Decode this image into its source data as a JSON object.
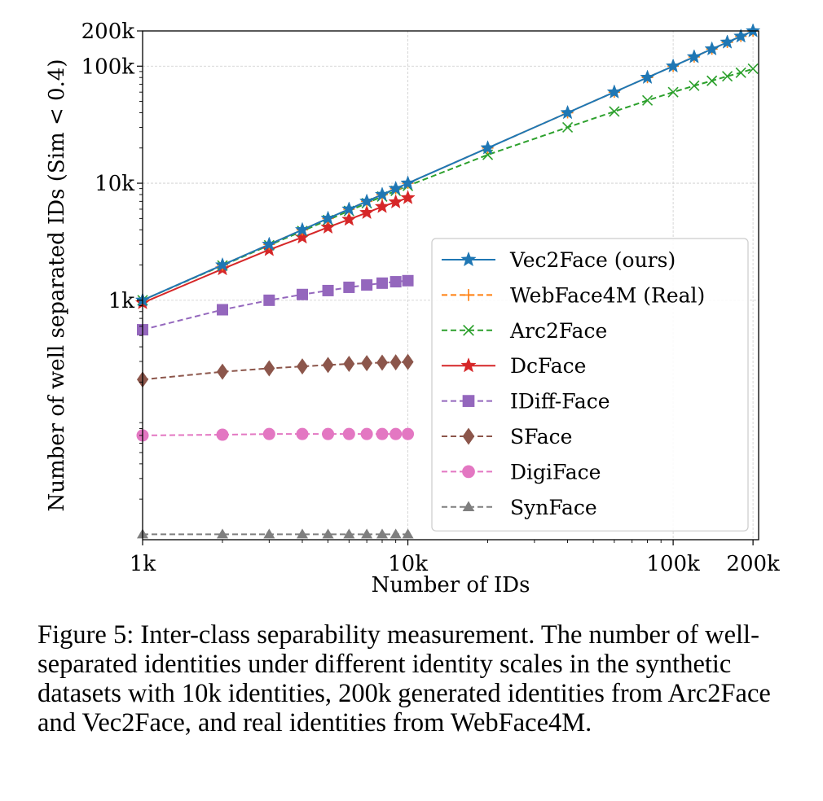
{
  "chart_data": {
    "type": "line",
    "xscale": "log",
    "yscale": "log",
    "xlim": [
      1000,
      210000
    ],
    "ylim": [
      9,
      200000
    ],
    "xlabel": "Number of IDs",
    "ylabel": "Number of well separated IDs (Sim < 0.4)",
    "xticks": [
      {
        "value": 1000,
        "label": "1k"
      },
      {
        "value": 10000,
        "label": "10k"
      },
      {
        "value": 100000,
        "label": "100k"
      },
      {
        "value": 200000,
        "label": "200k"
      }
    ],
    "yticks": [
      {
        "value": 1000,
        "label": "1k"
      },
      {
        "value": 10000,
        "label": "10k"
      },
      {
        "value": 100000,
        "label": "100k"
      },
      {
        "value": 200000,
        "label": "200k"
      }
    ],
    "grid": true,
    "legend_position": "center-right",
    "series": [
      {
        "name": "Vec2Face (ours)",
        "color": "#1f77b4",
        "marker": "star",
        "dash": "solid",
        "x": [
          1000,
          2000,
          3000,
          4000,
          5000,
          6000,
          7000,
          8000,
          9000,
          10000,
          20000,
          40000,
          60000,
          80000,
          100000,
          120000,
          140000,
          160000,
          180000,
          200000
        ],
        "y": [
          1000,
          2000,
          3000,
          4000,
          5000,
          6000,
          7000,
          8000,
          9000,
          10000,
          20000,
          40000,
          60000,
          80000,
          100000,
          120000,
          140000,
          160000,
          180000,
          200000
        ]
      },
      {
        "name": "WebFace4M (Real)",
        "color": "#ff7f0e",
        "marker": "plus",
        "dash": "dashed",
        "x": [
          1000,
          2000,
          3000,
          4000,
          5000,
          6000,
          7000,
          8000,
          9000,
          10000,
          20000,
          40000,
          60000,
          80000,
          100000,
          120000,
          140000,
          160000,
          180000,
          200000
        ],
        "y": [
          1000,
          2000,
          3000,
          4000,
          5000,
          6000,
          7000,
          8000,
          9000,
          10000,
          20000,
          40000,
          60000,
          80000,
          100000,
          120000,
          140000,
          160000,
          180000,
          200000
        ]
      },
      {
        "name": "Arc2Face",
        "color": "#2ca02c",
        "marker": "x",
        "dash": "dashed",
        "x": [
          1000,
          2000,
          3000,
          4000,
          5000,
          6000,
          7000,
          8000,
          9000,
          10000,
          20000,
          40000,
          60000,
          80000,
          100000,
          120000,
          140000,
          160000,
          180000,
          200000
        ],
        "y": [
          1000,
          1980,
          2950,
          3900,
          4850,
          5800,
          6750,
          7700,
          8600,
          9500,
          17500,
          30000,
          41000,
          51000,
          60000,
          68000,
          75000,
          82000,
          88000,
          95000
        ]
      },
      {
        "name": "DcFace",
        "color": "#d62728",
        "marker": "star",
        "dash": "solid",
        "x": [
          1000,
          2000,
          3000,
          4000,
          5000,
          6000,
          7000,
          8000,
          9000,
          10000
        ],
        "y": [
          950,
          1850,
          2700,
          3450,
          4200,
          4900,
          5600,
          6300,
          6900,
          7500
        ]
      },
      {
        "name": "IDiff-Face",
        "color": "#9467bd",
        "marker": "square",
        "dash": "dashed",
        "x": [
          1000,
          2000,
          3000,
          4000,
          5000,
          6000,
          7000,
          8000,
          9000,
          10000
        ],
        "y": [
          560,
          830,
          1000,
          1120,
          1210,
          1290,
          1350,
          1400,
          1440,
          1470
        ]
      },
      {
        "name": "SFace",
        "color": "#8c564b",
        "marker": "diamond",
        "dash": "dashed",
        "x": [
          1000,
          2000,
          3000,
          4000,
          5000,
          6000,
          7000,
          8000,
          9000,
          10000
        ],
        "y": [
          210,
          245,
          262,
          272,
          280,
          286,
          290,
          293,
          295,
          297
        ]
      },
      {
        "name": "DigiFace",
        "color": "#e377c2",
        "marker": "circle",
        "dash": "dashed",
        "x": [
          1000,
          2000,
          3000,
          4000,
          5000,
          6000,
          7000,
          8000,
          9000,
          10000
        ],
        "y": [
          70,
          71,
          72,
          72,
          72,
          72,
          72,
          72,
          72,
          72
        ]
      },
      {
        "name": "SynFace",
        "color": "#7f7f7f",
        "marker": "triangle",
        "dash": "dashed",
        "x": [
          1000,
          2000,
          3000,
          4000,
          5000,
          6000,
          7000,
          8000,
          9000,
          10000
        ],
        "y": [
          10,
          10,
          10,
          10,
          10,
          10,
          10,
          10,
          10,
          10
        ]
      }
    ]
  },
  "caption": "Figure 5: Inter-class separability measurement. The number of well-separated identities under different identity scales in the synthetic datasets with 10k identities, 200k generated identities from Arc2Face and Vec2Face, and real identities from WebFace4M."
}
